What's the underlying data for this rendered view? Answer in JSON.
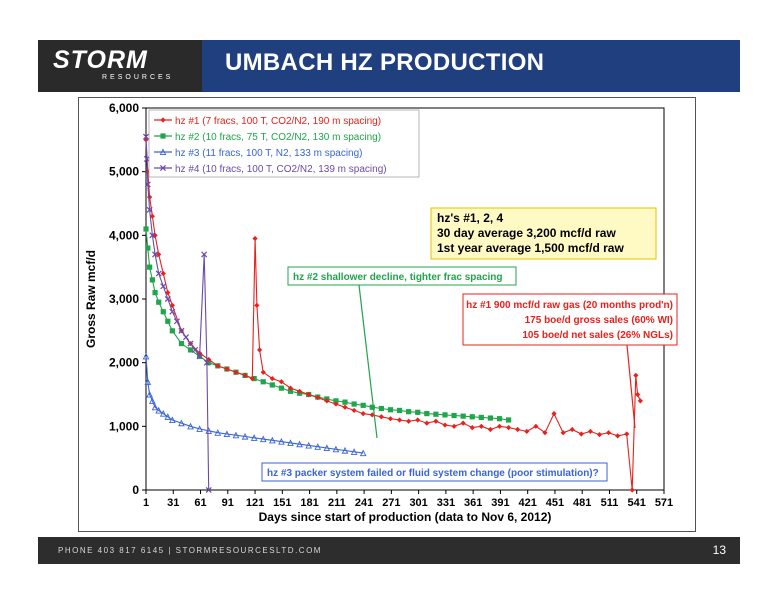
{
  "header": {
    "logo_text": "STORM",
    "logo_sub": "RESOURCES",
    "title": "UMBACH HZ PRODUCTION"
  },
  "footer": {
    "contact": "PHONE 403 817 6145   |   STORMRESOURCESLTD.COM",
    "page_number": "13"
  },
  "colors": {
    "header_bg": "#1f3f7f",
    "hz1": "#e8211c",
    "hz2": "#1fa54a",
    "hz3": "#3a63d8",
    "hz4": "#6a4aa8"
  },
  "annotations": {
    "summary_lines": [
      "hz's #1, 2, 4",
      "30 day average    3,200 mcf/d raw",
      "1st year average  1,500 mcf/d raw"
    ],
    "hz2_note": "hz #2 shallower decline, tighter frac spacing",
    "hz1_note_lines": [
      "hz #1 900 mcf/d raw gas (20 months prod'n)",
      "175 boe/d gross sales (60% WI)",
      "105 boe/d net sales (26% NGLs)"
    ],
    "hz3_note": "hz #3 packer system failed or fluid system change (poor stimulation)?"
  },
  "chart_data": {
    "type": "line",
    "xlabel": "Days since start of production (data to Nov 6, 2012)",
    "ylabel": "Gross Raw mcf/d",
    "xlim": [
      1,
      571
    ],
    "ylim": [
      0,
      6000
    ],
    "x_ticks": [
      1,
      31,
      61,
      91,
      121,
      151,
      181,
      211,
      241,
      271,
      301,
      331,
      361,
      391,
      421,
      451,
      481,
      511,
      541,
      571
    ],
    "y_ticks": [
      0,
      1000,
      2000,
      3000,
      4000,
      5000,
      6000
    ],
    "y_tick_labels": [
      "0",
      "1,000",
      "2,000",
      "3,000",
      "4,000",
      "5,000",
      "6,000"
    ],
    "legend_position": "top-left",
    "grid": false,
    "series": [
      {
        "name": "hz #1 (7 fracs, 100 T, CO2/N2, 190 m spacing)",
        "marker": "diamond",
        "x": [
          1,
          3,
          5,
          8,
          11,
          15,
          20,
          25,
          30,
          40,
          50,
          60,
          70,
          80,
          90,
          100,
          110,
          118,
          121,
          123,
          126,
          130,
          140,
          150,
          160,
          170,
          180,
          190,
          200,
          210,
          220,
          230,
          240,
          250,
          260,
          270,
          280,
          290,
          300,
          310,
          320,
          330,
          340,
          350,
          360,
          370,
          380,
          390,
          400,
          410,
          420,
          430,
          440,
          450,
          460,
          470,
          480,
          490,
          500,
          510,
          520,
          530,
          536,
          540,
          542,
          545
        ],
        "y": [
          5500,
          5000,
          4600,
          4300,
          4000,
          3700,
          3400,
          3100,
          2900,
          2500,
          2300,
          2150,
          2050,
          1950,
          1900,
          1850,
          1800,
          1750,
          3950,
          2900,
          2200,
          1850,
          1750,
          1700,
          1600,
          1550,
          1500,
          1450,
          1400,
          1350,
          1300,
          1250,
          1200,
          1180,
          1150,
          1120,
          1100,
          1080,
          1100,
          1050,
          1080,
          1020,
          1000,
          1050,
          980,
          1000,
          950,
          1000,
          980,
          950,
          920,
          1000,
          900,
          1200,
          900,
          950,
          880,
          920,
          870,
          900,
          850,
          880,
          0,
          1800,
          1500,
          1400
        ]
      },
      {
        "name": "hz #2 (10 fracs, 75 T, CO2/N2, 130 m spacing)",
        "marker": "square",
        "x": [
          1,
          3,
          5,
          8,
          11,
          15,
          20,
          25,
          30,
          40,
          50,
          60,
          70,
          80,
          90,
          100,
          110,
          120,
          130,
          140,
          150,
          160,
          170,
          180,
          190,
          200,
          210,
          220,
          230,
          240,
          250,
          260,
          270,
          280,
          290,
          300,
          310,
          320,
          330,
          340,
          350,
          360,
          370,
          380,
          390,
          400
        ],
        "y": [
          4100,
          3800,
          3500,
          3300,
          3100,
          2950,
          2800,
          2650,
          2500,
          2300,
          2200,
          2100,
          2000,
          1950,
          1900,
          1850,
          1800,
          1750,
          1700,
          1650,
          1600,
          1550,
          1520,
          1500,
          1460,
          1430,
          1400,
          1380,
          1350,
          1330,
          1300,
          1280,
          1260,
          1250,
          1230,
          1220,
          1200,
          1190,
          1180,
          1170,
          1160,
          1150,
          1140,
          1130,
          1120,
          1100
        ]
      },
      {
        "name": "hz #3 (11 fracs, 100 T, N2, 133 m spacing)",
        "marker": "triangle",
        "x": [
          1,
          3,
          5,
          8,
          11,
          15,
          20,
          25,
          30,
          40,
          50,
          60,
          70,
          80,
          90,
          100,
          110,
          120,
          130,
          140,
          150,
          160,
          170,
          180,
          190,
          200,
          210,
          220,
          230,
          240
        ],
        "y": [
          2100,
          1700,
          1500,
          1400,
          1300,
          1250,
          1200,
          1150,
          1100,
          1050,
          1000,
          960,
          930,
          900,
          880,
          860,
          840,
          820,
          800,
          780,
          760,
          740,
          720,
          700,
          680,
          660,
          640,
          620,
          600,
          580
        ]
      },
      {
        "name": "hz #4 (10 fracs, 100 T, CO2/N2, 139 m spacing)",
        "marker": "x",
        "x": [
          1,
          2,
          3,
          5,
          8,
          11,
          15,
          20,
          25,
          30,
          35,
          40,
          45,
          50,
          55,
          60,
          65,
          68,
          70
        ],
        "y": [
          5550,
          5200,
          4800,
          4400,
          4000,
          3700,
          3400,
          3200,
          3000,
          2800,
          2650,
          2500,
          2400,
          2300,
          2200,
          2100,
          3700,
          2000,
          0
        ]
      }
    ]
  }
}
